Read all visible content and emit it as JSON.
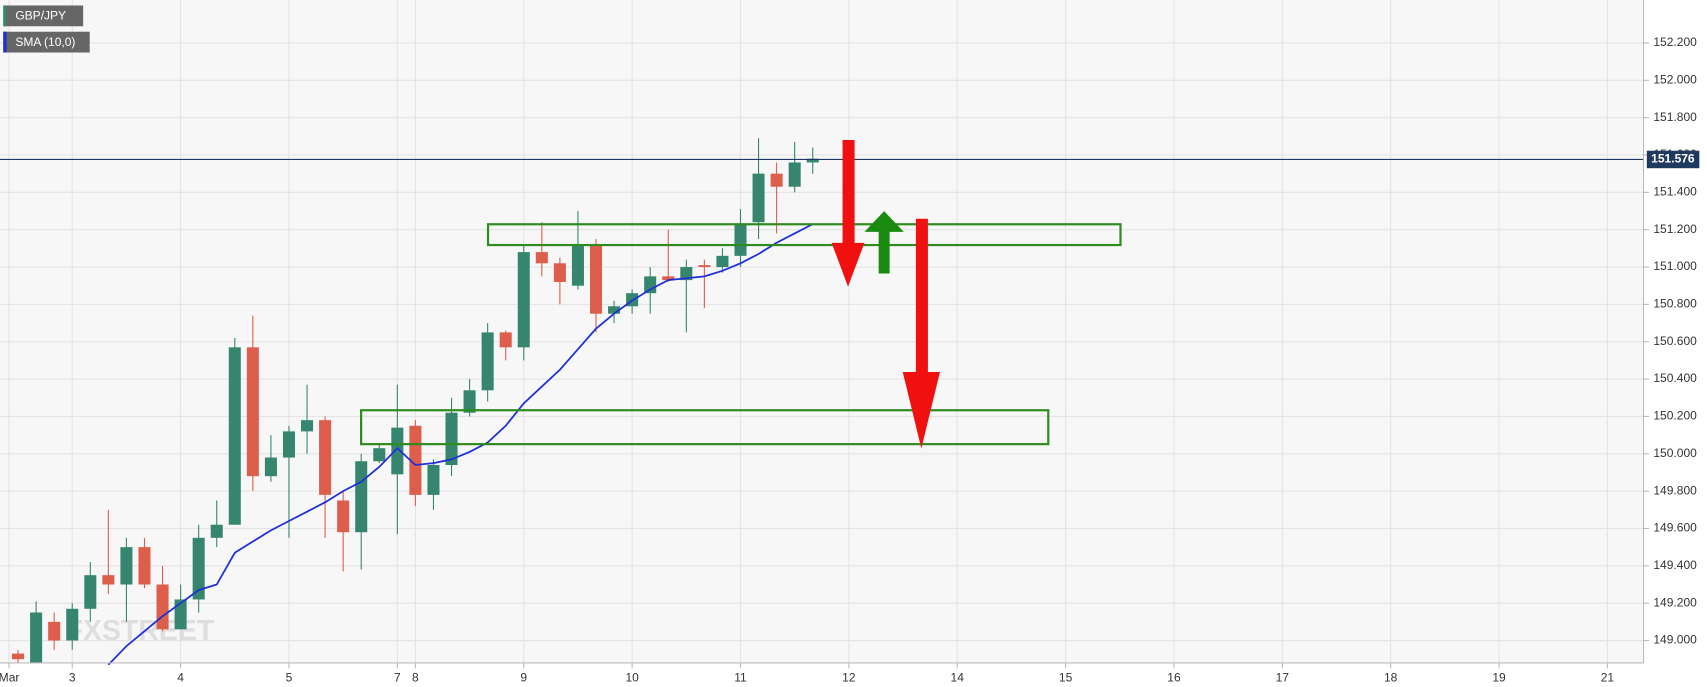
{
  "chart_data": {
    "type": "candlestick",
    "symbol": "GBP/JPY",
    "indicator": "SMA (10,0)",
    "watermark": "FXSTREET",
    "last_price": {
      "value": 151.576,
      "label": "151.576"
    },
    "up_color": "#36866f",
    "down_color": "#dd5e4b",
    "sma_color": "#1f2fd6",
    "xlim": [
      -1,
      90
    ],
    "xticks": [
      {
        "value": -0.5,
        "label": "Mar"
      },
      3,
      9,
      15,
      21,
      22,
      28,
      34,
      40,
      46,
      52,
      58,
      64,
      70,
      76,
      82,
      88
    ],
    "xtick_labels": [
      "Mar",
      "3",
      "4",
      "5",
      "7",
      "8",
      "9",
      "10",
      "11",
      "12",
      "14",
      "15",
      "16",
      "17",
      "18",
      "19",
      "21"
    ],
    "ylim": [
      148.88,
      152.43
    ],
    "yticks": [
      {
        "value": 149.0,
        "label": "149.000"
      },
      {
        "value": 149.2,
        "label": "149.200"
      },
      {
        "value": 149.4,
        "label": "149.400"
      },
      {
        "value": 149.6,
        "label": "149.600"
      },
      {
        "value": 149.8,
        "label": "149.800"
      },
      {
        "value": 150.0,
        "label": "150.000"
      },
      {
        "value": 150.2,
        "label": "150.200"
      },
      {
        "value": 150.4,
        "label": "150.400"
      },
      {
        "value": 150.6,
        "label": "150.600"
      },
      {
        "value": 150.8,
        "label": "150.800"
      },
      {
        "value": 151.0,
        "label": "151.000"
      },
      {
        "value": 151.2,
        "label": "151.200"
      },
      {
        "value": 151.4,
        "label": "151.400"
      },
      {
        "value": 151.6,
        "label": "151.600"
      },
      {
        "value": 151.8,
        "label": "151.800"
      },
      {
        "value": 152.0,
        "label": "152.000"
      },
      {
        "value": 152.2,
        "label": "152.200"
      }
    ],
    "grid": true,
    "open": [
      148.93,
      148.88,
      149.1,
      149.0,
      149.17,
      149.35,
      149.3,
      149.5,
      149.3,
      149.06,
      149.22,
      149.55,
      149.62,
      150.57,
      149.88,
      149.98,
      150.12,
      150.18,
      149.75,
      149.58,
      149.96,
      149.89,
      150.15,
      149.78,
      149.94,
      150.22,
      150.34,
      150.65,
      150.57,
      151.08,
      151.02,
      150.9,
      151.12,
      150.75,
      150.79,
      150.86,
      150.95,
      150.93,
      151.01,
      151.0,
      151.06,
      151.24,
      151.5,
      151.43,
      151.56
    ],
    "high": [
      148.95,
      149.21,
      149.15,
      149.2,
      149.42,
      149.7,
      149.55,
      149.55,
      149.4,
      149.3,
      149.62,
      149.75,
      150.62,
      150.74,
      150.1,
      150.15,
      150.37,
      150.2,
      149.8,
      150.0,
      150.05,
      150.37,
      150.18,
      149.97,
      150.3,
      150.4,
      150.7,
      150.66,
      151.12,
      151.24,
      151.05,
      151.3,
      151.15,
      150.82,
      150.88,
      151.0,
      151.2,
      151.04,
      151.04,
      151.1,
      151.31,
      151.69,
      151.56,
      151.67,
      151.64
    ],
    "low": [
      148.88,
      148.88,
      148.95,
      148.95,
      149.1,
      149.25,
      149.1,
      149.28,
      149.05,
      149.06,
      149.15,
      149.5,
      149.62,
      149.8,
      149.85,
      149.55,
      150.0,
      149.55,
      149.37,
      149.38,
      149.95,
      149.57,
      149.72,
      149.7,
      149.88,
      150.2,
      150.28,
      150.5,
      150.5,
      150.95,
      150.8,
      150.88,
      150.65,
      150.7,
      150.75,
      150.75,
      150.92,
      150.65,
      150.78,
      150.97,
      151.0,
      151.15,
      151.18,
      151.4,
      151.5
    ],
    "close": [
      148.9,
      149.15,
      149.0,
      149.17,
      149.35,
      149.3,
      149.5,
      149.3,
      149.06,
      149.22,
      149.55,
      149.62,
      150.57,
      149.88,
      149.98,
      150.12,
      150.18,
      149.78,
      149.58,
      149.96,
      150.03,
      150.14,
      149.78,
      149.94,
      150.22,
      150.34,
      150.65,
      150.57,
      151.08,
      151.02,
      150.92,
      151.12,
      150.75,
      150.79,
      150.86,
      150.95,
      150.93,
      151.0,
      151.0,
      151.06,
      151.23,
      151.5,
      151.43,
      151.56,
      151.58
    ],
    "sma": [
      null,
      null,
      null,
      null,
      null,
      148.87,
      148.97,
      149.05,
      149.13,
      149.2,
      149.27,
      149.3,
      149.47,
      149.53,
      149.59,
      149.64,
      149.69,
      149.74,
      149.8,
      149.85,
      149.93,
      150.03,
      149.94,
      149.95,
      149.97,
      150.01,
      150.06,
      150.15,
      150.27,
      150.36,
      150.45,
      150.56,
      150.67,
      150.75,
      150.82,
      150.88,
      150.93,
      150.94,
      150.95,
      150.98,
      151.02,
      151.07,
      151.13,
      151.18,
      151.23
    ]
  }
}
